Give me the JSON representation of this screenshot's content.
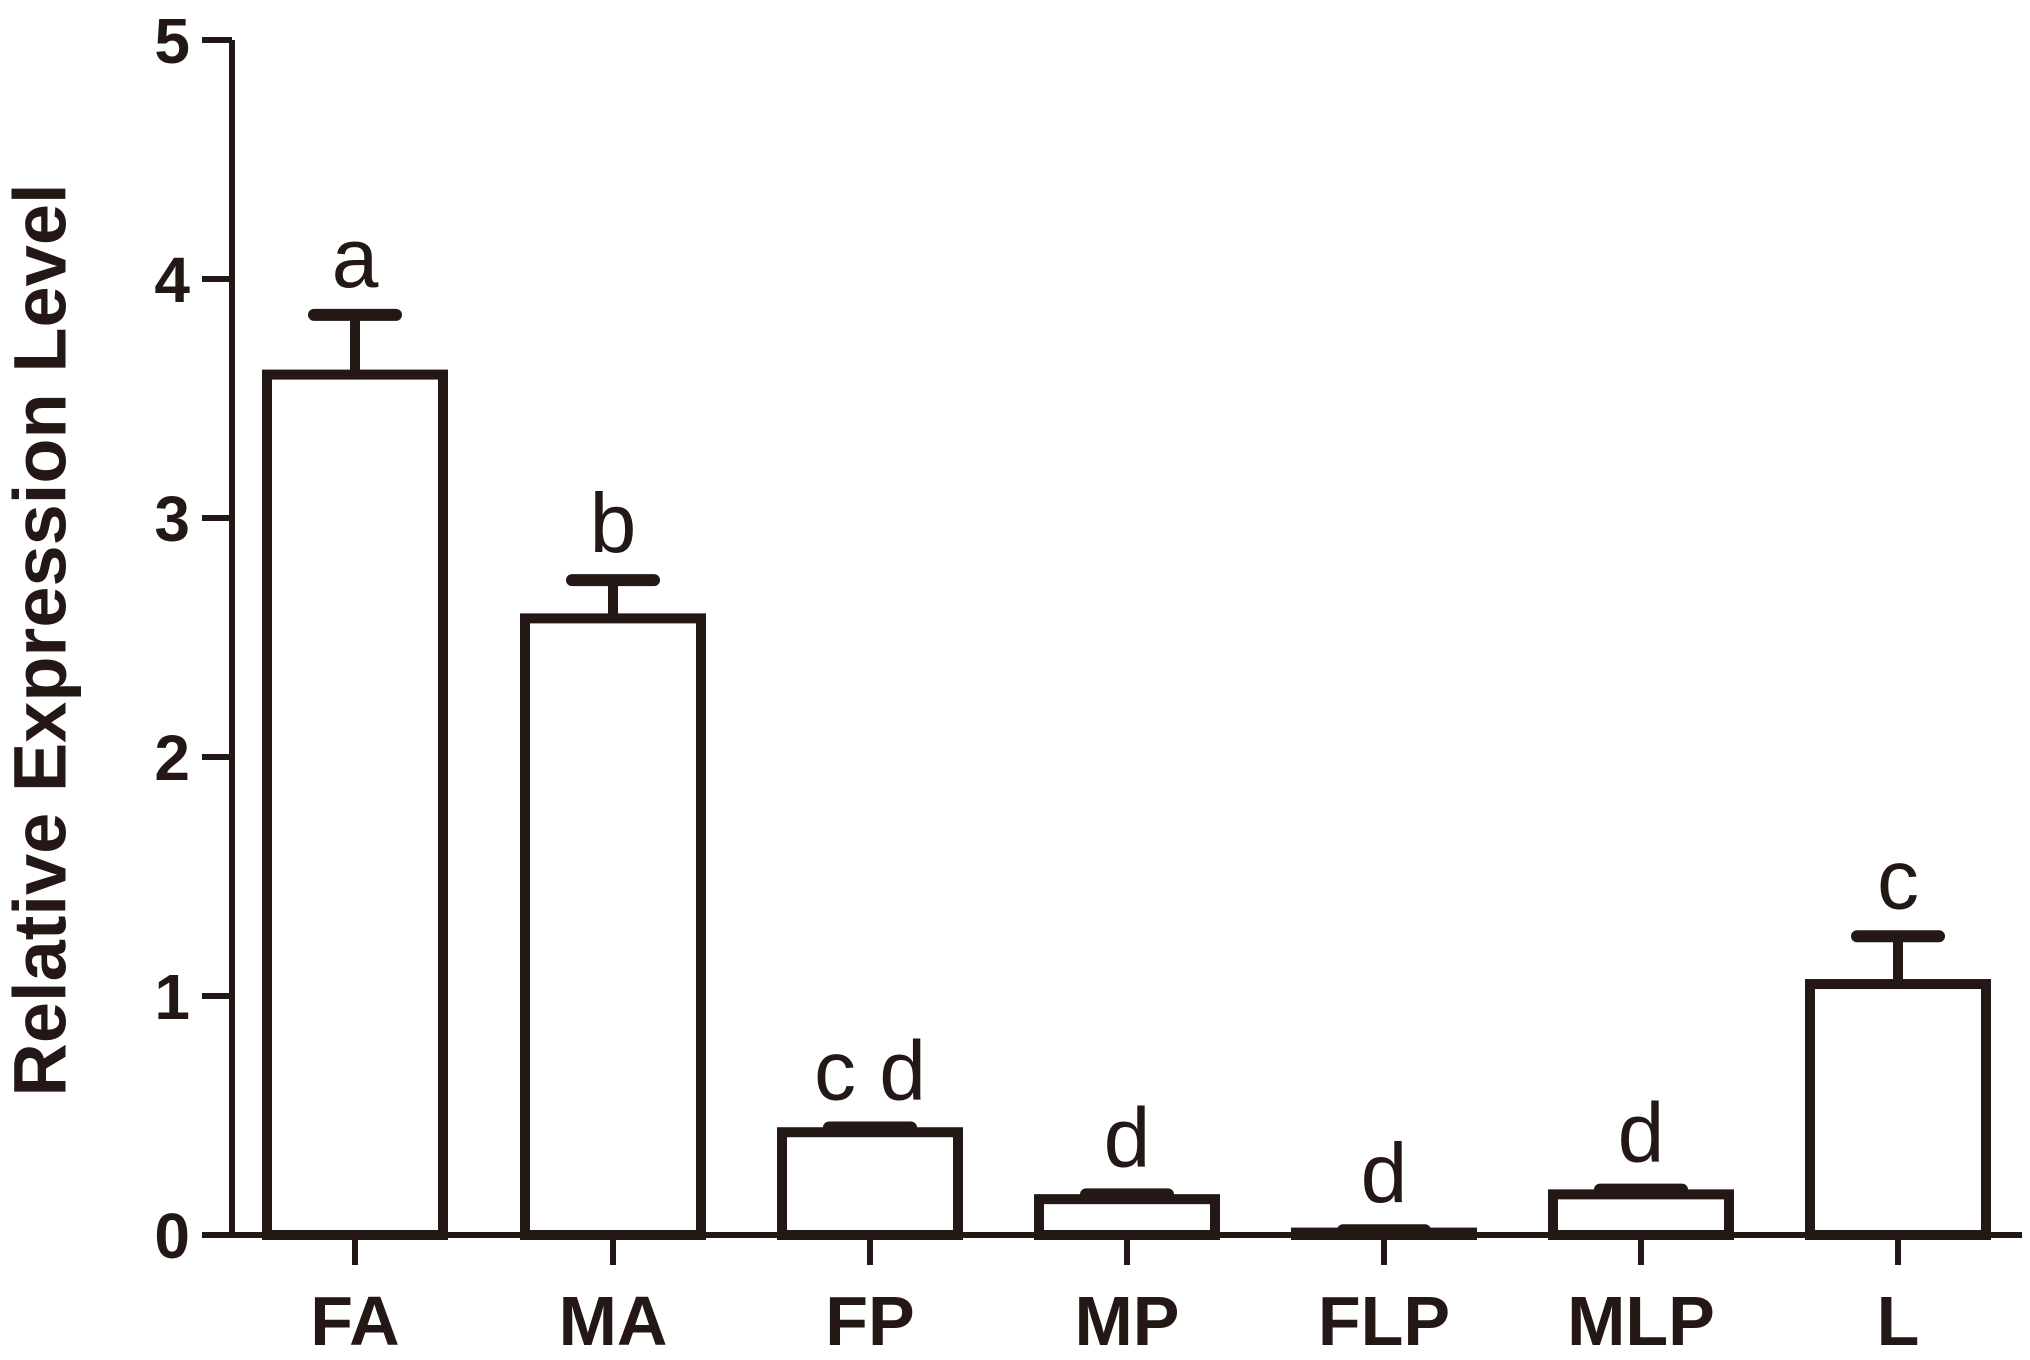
{
  "chart_data": {
    "type": "bar",
    "title": "",
    "xlabel": "",
    "ylabel": "Relative Expression Level",
    "ylim": [
      0,
      5
    ],
    "yticks": [
      "0",
      "1",
      "2",
      "3",
      "4",
      "5"
    ],
    "categories": [
      "FA",
      "MA",
      "FP",
      "MP",
      "FLP",
      "MLP",
      "L"
    ],
    "values": [
      3.6,
      2.58,
      0.43,
      0.15,
      0.01,
      0.17,
      1.05
    ],
    "errors": [
      0.25,
      0.16,
      0.02,
      0.02,
      0.01,
      0.02,
      0.2
    ],
    "significance_letters": [
      "a",
      "b",
      "c d",
      "d",
      "d",
      "d",
      "c"
    ],
    "grid": false,
    "legend": "none",
    "colors": {
      "bar_fill": "#ffffff",
      "stroke": "#231815",
      "text": "#231815"
    }
  }
}
